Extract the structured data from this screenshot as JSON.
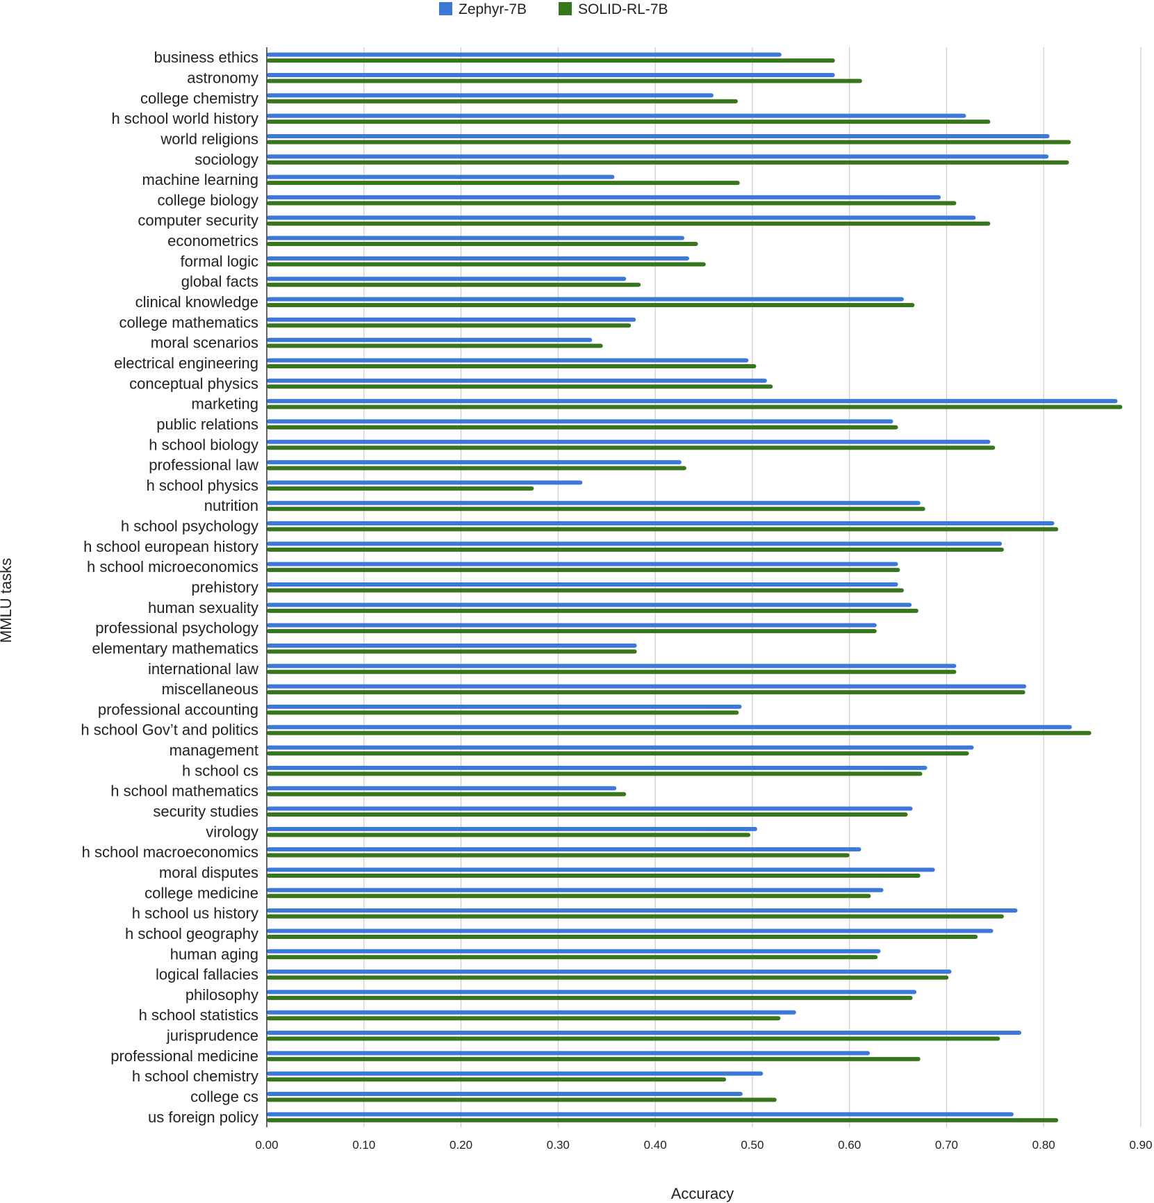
{
  "chart_data": {
    "type": "bar",
    "orientation": "horizontal",
    "title": "",
    "xlabel": "Accuracy",
    "ylabel": "MMLU tasks",
    "xlim": [
      0,
      0.9
    ],
    "xticks": [
      "0.00",
      "0.10",
      "0.20",
      "0.30",
      "0.40",
      "0.50",
      "0.60",
      "0.70",
      "0.80",
      "0.90"
    ],
    "grid": "vertical",
    "legend_position": "top-center",
    "colors": {
      "Zephyr-7B": "#3c78d8",
      "SOLID-RL-7B": "#38761d",
      "grid": "#cccccc",
      "axis": "#333333"
    },
    "categories": [
      "business ethics",
      "astronomy",
      "college chemistry",
      "h school world history",
      "world religions",
      "sociology",
      "machine learning",
      "college biology",
      "computer security",
      "econometrics",
      "formal logic",
      "global facts",
      "clinical knowledge",
      "college mathematics",
      "moral scenarios",
      "electrical engineering",
      "conceptual physics",
      "marketing",
      "public relations",
      "h school biology",
      "professional law",
      "h school physics",
      "nutrition",
      "h school psychology",
      "h school european history",
      "h school microeconomics",
      "prehistory",
      "human sexuality",
      "professional psychology",
      "elementary mathematics",
      "international law",
      "miscellaneous",
      "professional accounting",
      "h school Gov’t and politics",
      "management",
      "h school cs",
      "h school mathematics",
      "security studies",
      "virology",
      "h school macroeconomics",
      "moral disputes",
      "college medicine",
      "h school us history",
      "h school geography",
      "human aging",
      "logical fallacies",
      "philosophy",
      "h school statistics",
      "jurisprudence",
      "professional medicine",
      "h school chemistry",
      "college cs",
      "us foreign policy"
    ],
    "series": [
      {
        "name": "Zephyr-7B",
        "values": [
          0.53,
          0.585,
          0.46,
          0.72,
          0.806,
          0.805,
          0.358,
          0.694,
          0.73,
          0.43,
          0.435,
          0.37,
          0.656,
          0.38,
          0.335,
          0.496,
          0.515,
          0.876,
          0.645,
          0.745,
          0.427,
          0.325,
          0.673,
          0.811,
          0.757,
          0.65,
          0.65,
          0.664,
          0.628,
          0.381,
          0.71,
          0.782,
          0.489,
          0.829,
          0.728,
          0.68,
          0.36,
          0.665,
          0.505,
          0.612,
          0.688,
          0.635,
          0.773,
          0.748,
          0.632,
          0.705,
          0.669,
          0.545,
          0.777,
          0.621,
          0.511,
          0.49,
          0.769
        ]
      },
      {
        "name": "SOLID-RL-7B",
        "values": [
          0.585,
          0.613,
          0.485,
          0.745,
          0.828,
          0.826,
          0.487,
          0.71,
          0.745,
          0.444,
          0.452,
          0.385,
          0.667,
          0.375,
          0.346,
          0.504,
          0.521,
          0.881,
          0.65,
          0.75,
          0.432,
          0.275,
          0.678,
          0.815,
          0.759,
          0.652,
          0.656,
          0.671,
          0.628,
          0.381,
          0.71,
          0.781,
          0.486,
          0.849,
          0.723,
          0.675,
          0.37,
          0.66,
          0.498,
          0.6,
          0.673,
          0.622,
          0.759,
          0.732,
          0.629,
          0.702,
          0.665,
          0.529,
          0.755,
          0.673,
          0.473,
          0.525,
          0.815
        ]
      }
    ]
  }
}
